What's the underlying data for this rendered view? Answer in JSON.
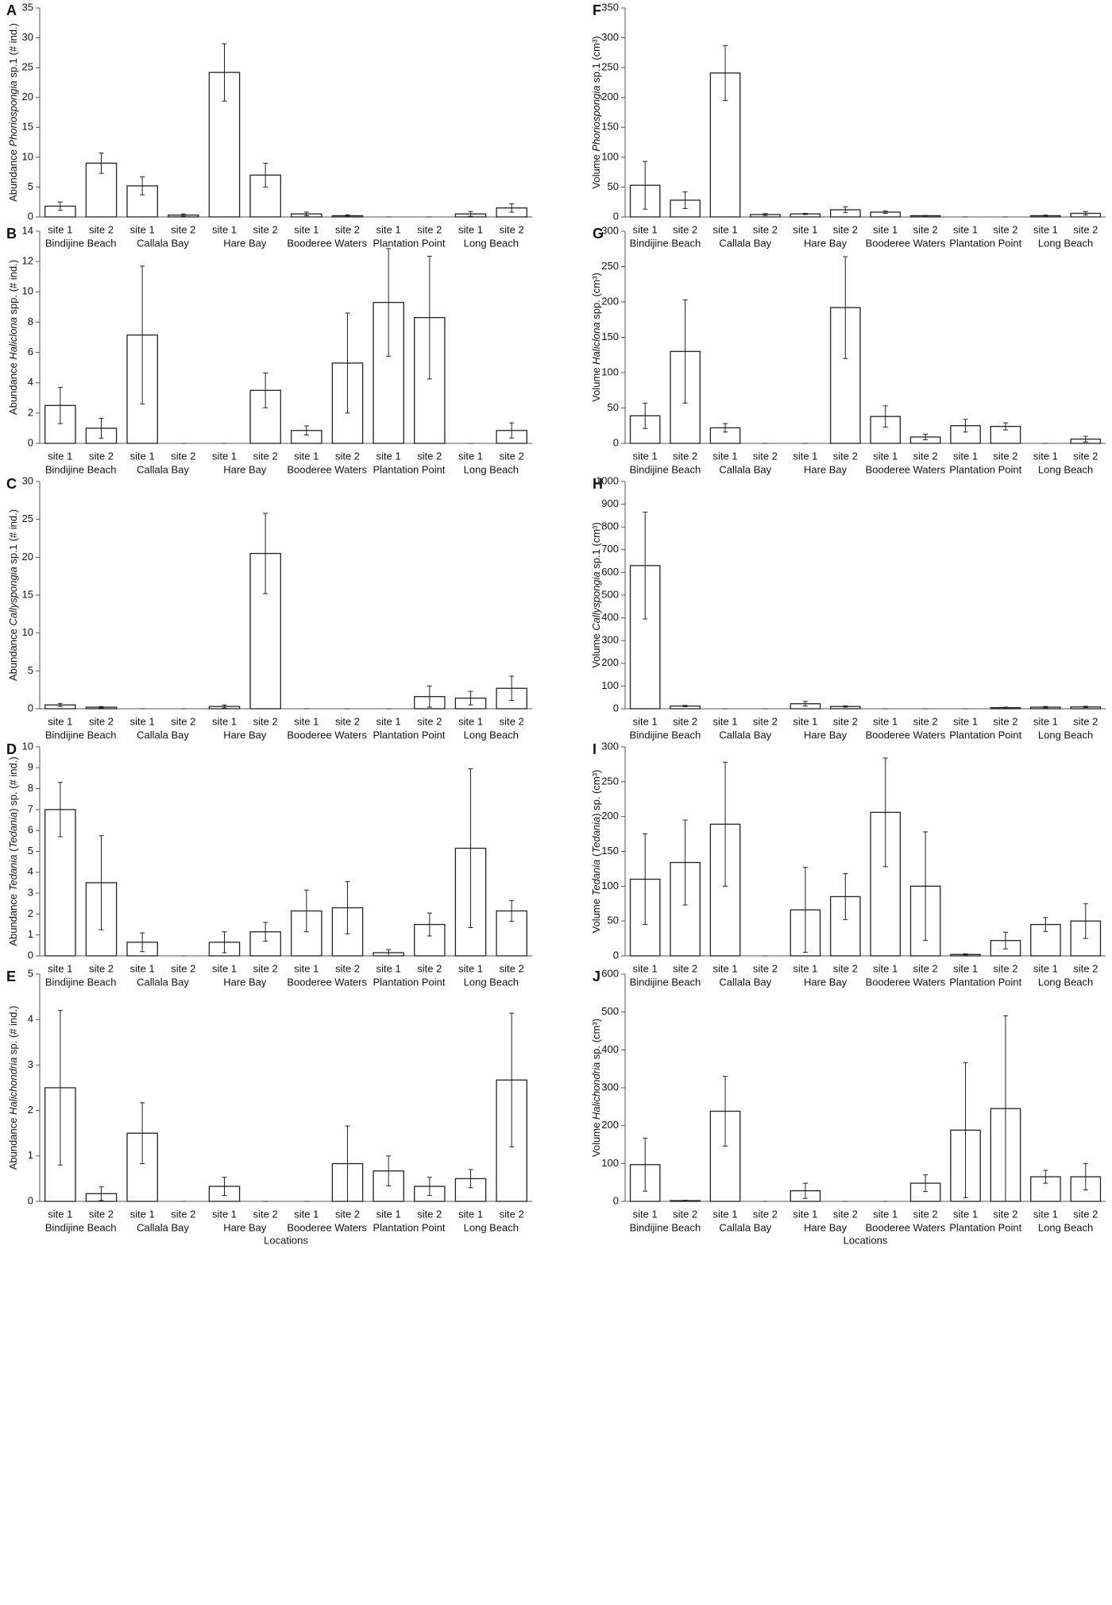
{
  "chart_data": [
    {
      "type": "bar",
      "label": "A",
      "ylabel": [
        "Abundance ",
        "Phoriospongia",
        " sp.1 (# ind.)"
      ],
      "categories": [
        "site 1",
        "site 2",
        "site 1",
        "site 2",
        "site 1",
        "site 2",
        "site 1",
        "site 2",
        "site 1",
        "site 2",
        "site 1",
        "site 2"
      ],
      "groups": [
        "Bindijine Beach",
        "Callala Bay",
        "Hare Bay",
        "Booderee Waters",
        "Plantation Point",
        "Long Beach"
      ],
      "values": [
        1.8,
        9,
        5.2,
        0.3,
        24.2,
        7,
        0.5,
        0.2,
        0,
        0,
        0.5,
        1.5
      ],
      "errors": [
        0.7,
        1.7,
        1.5,
        0.2,
        4.8,
        2,
        0.3,
        0.15,
        0,
        0,
        0.4,
        0.7
      ],
      "ylim": [
        0,
        35
      ],
      "yticks": [
        0,
        5,
        10,
        15,
        20,
        25,
        30,
        35
      ],
      "color": "#ffffff"
    },
    {
      "type": "bar",
      "label": "B",
      "ylabel": [
        "Abundance ",
        "Haliclona",
        " spp. (# ind.)"
      ],
      "categories": [
        "site 1",
        "site 2",
        "site 1",
        "site 2",
        "site 1",
        "site 2",
        "site 1",
        "site 2",
        "site 1",
        "site 2",
        "site 1",
        "site 2"
      ],
      "groups": [
        "Bindijine Beach",
        "Callala Bay",
        "Hare Bay",
        "Booderee Waters",
        "Plantation Point",
        "Long Beach"
      ],
      "values": [
        2.5,
        1,
        7.15,
        0,
        0,
        3.5,
        0.85,
        5.3,
        9.3,
        8.3,
        0,
        0.85
      ],
      "errors": [
        1.2,
        0.65,
        4.55,
        0,
        0,
        1.15,
        0.3,
        3.3,
        3.55,
        4.05,
        0,
        0.5
      ],
      "ylim": [
        0,
        14
      ],
      "yticks": [
        0,
        2,
        4,
        6,
        8,
        10,
        12,
        14
      ],
      "color": "#ffffff"
    },
    {
      "type": "bar",
      "label": "C",
      "ylabel": [
        "Abundance ",
        "Callyspongia",
        " sp.1 (# ind.)"
      ],
      "categories": [
        "site 1",
        "site 2",
        "site 1",
        "site 2",
        "site 1",
        "site 2",
        "site 1",
        "site 2",
        "site 1",
        "site 2",
        "site 1",
        "site 2"
      ],
      "groups": [
        "Bindijine Beach",
        "Callala Bay",
        "Hare Bay",
        "Booderee Waters",
        "Plantation Point",
        "Long Beach"
      ],
      "values": [
        0.5,
        0.2,
        0,
        0,
        0.3,
        20.5,
        0,
        0,
        0,
        1.6,
        1.4,
        2.7
      ],
      "errors": [
        0.2,
        0.1,
        0,
        0,
        0.2,
        5.3,
        0,
        0,
        0,
        1.4,
        0.9,
        1.6
      ],
      "ylim": [
        0,
        30
      ],
      "yticks": [
        0,
        5,
        10,
        15,
        20,
        25,
        30
      ],
      "color": "#ffffff"
    },
    {
      "type": "bar",
      "label": "D",
      "ylabel": [
        "Abundance ",
        "Tedania",
        " (",
        "Tedania",
        ") sp. (# ind.)"
      ],
      "categories": [
        "site 1",
        "site 2",
        "site 1",
        "site 2",
        "site 1",
        "site 2",
        "site 1",
        "site 2",
        "site 1",
        "site 2",
        "site 1",
        "site 2"
      ],
      "groups": [
        "Bindijine Beach",
        "Callala Bay",
        "Hare Bay",
        "Booderee Waters",
        "Plantation Point",
        "Long Beach"
      ],
      "values": [
        7,
        3.5,
        0.65,
        0,
        0.65,
        1.15,
        2.15,
        2.3,
        0.15,
        1.5,
        5.15,
        2.15
      ],
      "errors": [
        1.3,
        2.25,
        0.45,
        0,
        0.5,
        0.45,
        1,
        1.25,
        0.15,
        0.55,
        3.8,
        0.5
      ],
      "ylim": [
        0,
        10
      ],
      "yticks": [
        0,
        1,
        2,
        3,
        4,
        5,
        6,
        7,
        8,
        9,
        10
      ],
      "color": "#ffffff"
    },
    {
      "type": "bar",
      "label": "E",
      "ylabel": [
        "Abundance ",
        "Halichondria",
        " sp. (# ind.)"
      ],
      "categories": [
        "site 1",
        "site 2",
        "site 1",
        "site 2",
        "site 1",
        "site 2",
        "site 1",
        "site 2",
        "site 1",
        "site 2",
        "site 1",
        "site 2"
      ],
      "groups": [
        "Bindijine Beach",
        "Callala Bay",
        "Hare Bay",
        "Booderee Waters",
        "Plantation Point",
        "Long Beach"
      ],
      "values": [
        2.5,
        0.17,
        1.5,
        0,
        0.33,
        0,
        0,
        0.83,
        0.67,
        0.33,
        0.5,
        2.67
      ],
      "errors": [
        1.7,
        0.15,
        0.67,
        0,
        0.2,
        0,
        0,
        0.83,
        0.33,
        0.2,
        0.2,
        1.47
      ],
      "ylim": [
        0,
        5
      ],
      "yticks": [
        0,
        1,
        2,
        3,
        4,
        5
      ],
      "color": "#ffffff",
      "xlabel": "Locations"
    },
    {
      "type": "bar",
      "label": "F",
      "ylabel": [
        "Volume ",
        "Phoriospongia",
        " sp.1 (cm³)"
      ],
      "categories": [
        "site 1",
        "site 2",
        "site 1",
        "site 2",
        "site 1",
        "site 2",
        "site 1",
        "site 2",
        "site 1",
        "site 2",
        "site 1",
        "site 2"
      ],
      "groups": [
        "Bindijine Beach",
        "Callala Bay",
        "Hare Bay",
        "Booderee Waters",
        "Plantation Point",
        "Long Beach"
      ],
      "values": [
        53,
        28,
        241,
        4,
        5,
        12,
        8,
        2,
        0,
        0,
        2,
        6
      ],
      "errors": [
        40,
        14,
        46,
        1.5,
        1,
        5,
        2,
        0.5,
        0,
        0,
        1,
        3
      ],
      "ylim": [
        0,
        350
      ],
      "yticks": [
        0,
        50,
        100,
        150,
        200,
        250,
        300,
        350
      ],
      "color": "#ffffff"
    },
    {
      "type": "bar",
      "label": "G",
      "ylabel": [
        "Volume ",
        "Haliclona",
        " spp. (cm³)"
      ],
      "categories": [
        "site 1",
        "site 2",
        "site 1",
        "site 2",
        "site 1",
        "site 2",
        "site 1",
        "site 2",
        "site 1",
        "site 2",
        "site 1",
        "site 2"
      ],
      "groups": [
        "Bindijine Beach",
        "Callala Bay",
        "Hare Bay",
        "Booderee Waters",
        "Plantation Point",
        "Long Beach"
      ],
      "values": [
        39,
        130,
        22,
        0,
        0,
        192,
        38,
        9,
        25,
        24,
        0,
        6
      ],
      "errors": [
        18,
        73,
        6,
        0,
        0,
        72,
        15,
        4,
        9,
        5,
        0,
        4
      ],
      "ylim": [
        0,
        300
      ],
      "yticks": [
        0,
        50,
        100,
        150,
        200,
        250,
        300
      ],
      "color": "#ffffff"
    },
    {
      "type": "bar",
      "label": "H",
      "ylabel": [
        "Volume ",
        "Callyspongia",
        " sp.1 (cm³)"
      ],
      "categories": [
        "site 1",
        "site 2",
        "site 1",
        "site 2",
        "site 1",
        "site 2",
        "site 1",
        "site 2",
        "site 1",
        "site 2",
        "site 1",
        "site 2"
      ],
      "groups": [
        "Bindijine Beach",
        "Callala Bay",
        "Hare Bay",
        "Booderee Waters",
        "Plantation Point",
        "Long Beach"
      ],
      "values": [
        630,
        12,
        0,
        0,
        22,
        10,
        0,
        0,
        0,
        5,
        7,
        8
      ],
      "errors": [
        235,
        3,
        0,
        0,
        10,
        3,
        0,
        0,
        0,
        2,
        3,
        3
      ],
      "ylim": [
        0,
        1000
      ],
      "yticks": [
        0,
        100,
        200,
        300,
        400,
        500,
        600,
        700,
        800,
        900,
        1000
      ],
      "color": "#ffffff"
    },
    {
      "type": "bar",
      "label": "I",
      "ylabel": [
        "Volume ",
        "Tedania",
        " (",
        "Tedania",
        ") sp. (cm³)"
      ],
      "categories": [
        "site 1",
        "site 2",
        "site 1",
        "site 2",
        "site 1",
        "site 2",
        "site 1",
        "site 2",
        "site 1",
        "site 2",
        "site 1",
        "site 2"
      ],
      "groups": [
        "Bindijine Beach",
        "Callala Bay",
        "Hare Bay",
        "Booderee Waters",
        "Plantation Point",
        "Long Beach"
      ],
      "values": [
        110,
        134,
        189,
        0,
        66,
        85,
        206,
        100,
        2,
        22,
        45,
        50
      ],
      "errors": [
        65,
        61,
        89,
        0,
        61,
        33,
        78,
        78,
        1,
        12,
        10,
        25
      ],
      "ylim": [
        0,
        300
      ],
      "yticks": [
        0,
        50,
        100,
        150,
        200,
        250,
        300
      ],
      "color": "#ffffff"
    },
    {
      "type": "bar",
      "label": "J",
      "ylabel": [
        "Volume ",
        "Halichondria",
        " sp. (cm³)"
      ],
      "categories": [
        "site 1",
        "site 2",
        "site 1",
        "site 2",
        "site 1",
        "site 2",
        "site 1",
        "site 2",
        "site 1",
        "site 2",
        "site 1",
        "site 2"
      ],
      "groups": [
        "Bindijine Beach",
        "Callala Bay",
        "Hare Bay",
        "Booderee Waters",
        "Plantation Point",
        "Long Beach"
      ],
      "values": [
        97,
        2,
        238,
        0,
        28,
        0,
        0,
        48,
        188,
        245,
        65,
        65
      ],
      "errors": [
        70,
        1,
        92,
        0,
        20,
        0,
        0,
        22,
        178,
        245,
        17,
        35
      ],
      "ylim": [
        0,
        600
      ],
      "yticks": [
        0,
        100,
        200,
        300,
        400,
        500,
        600
      ],
      "color": "#ffffff",
      "xlabel": "Locations"
    }
  ]
}
